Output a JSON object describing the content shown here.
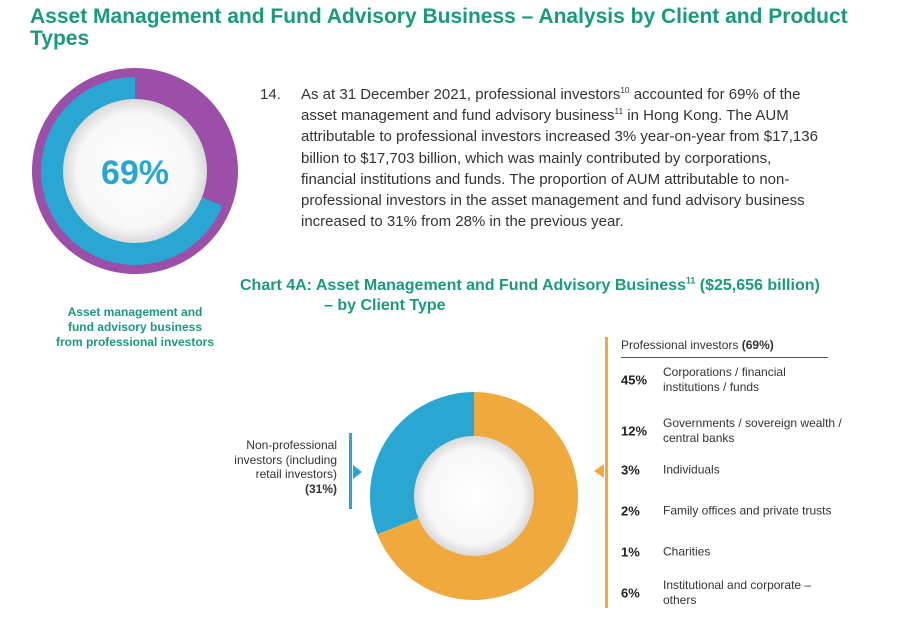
{
  "heading": "Asset Management and Fund Advisory Business – Analysis by Client and Product Types",
  "highlight": {
    "value": "69%",
    "fraction": 0.69,
    "caption_lines": [
      "Asset management and",
      "fund advisory business",
      "from professional investors"
    ],
    "colors": {
      "ring": "#9b4fa8",
      "fill": "#2aa6d2",
      "value": "#2aa6d2"
    }
  },
  "paragraph": {
    "number": "14.",
    "segments": [
      {
        "t": "As at 31 December 2021, professional investors"
      },
      {
        "t": "10",
        "sup": true
      },
      {
        "t": " accounted for 69% of the asset management and fund advisory business"
      },
      {
        "t": "11",
        "sup": true
      },
      {
        "t": " in Hong Kong. The AUM attributable to professional investors increased 3% year-on-year from $17,136 billion to $17,703 billion, which was mainly contributed by corporations, financial institutions and funds. The proportion of AUM attributable to non-professional investors in the asset management and fund advisory business increased to 31% from 28% in the previous year."
      }
    ]
  },
  "chart_title": {
    "line1_a": "Chart 4A: Asset Management and Fund Advisory Business",
    "line1_sup": "11",
    "line1_b": " ($25,656 billion)",
    "line2": "– by Client Type"
  },
  "non_professional": {
    "label_lines": [
      "Non-professional",
      "investors (including",
      "retail investors)"
    ],
    "pct": "(31%)",
    "color": "#2aa6d2"
  },
  "professional": {
    "header": "Professional investors ",
    "header_pct": "(69%)",
    "color": "#f0a93d",
    "items": [
      {
        "pct": "45%",
        "label": "Corporations / financial institutions / funds"
      },
      {
        "pct": "12%",
        "label": "Governments / sovereign wealth / central banks"
      },
      {
        "pct": "3%",
        "label": "Individuals"
      },
      {
        "pct": "2%",
        "label": "Family offices and private trusts"
      },
      {
        "pct": "1%",
        "label": "Charities"
      },
      {
        "pct": "6%",
        "label": "Institutional and corporate – others"
      }
    ]
  },
  "chart_data": {
    "type": "pie",
    "categories": [
      "Professional investors",
      "Non-professional investors (including retail investors)"
    ],
    "values": [
      69,
      31
    ],
    "colors": [
      "#f0a93d",
      "#2aa6d2"
    ],
    "unit": "%",
    "title": "Chart 4A: Asset Management and Fund Advisory Business ($25,656 billion) – by Client Type"
  }
}
